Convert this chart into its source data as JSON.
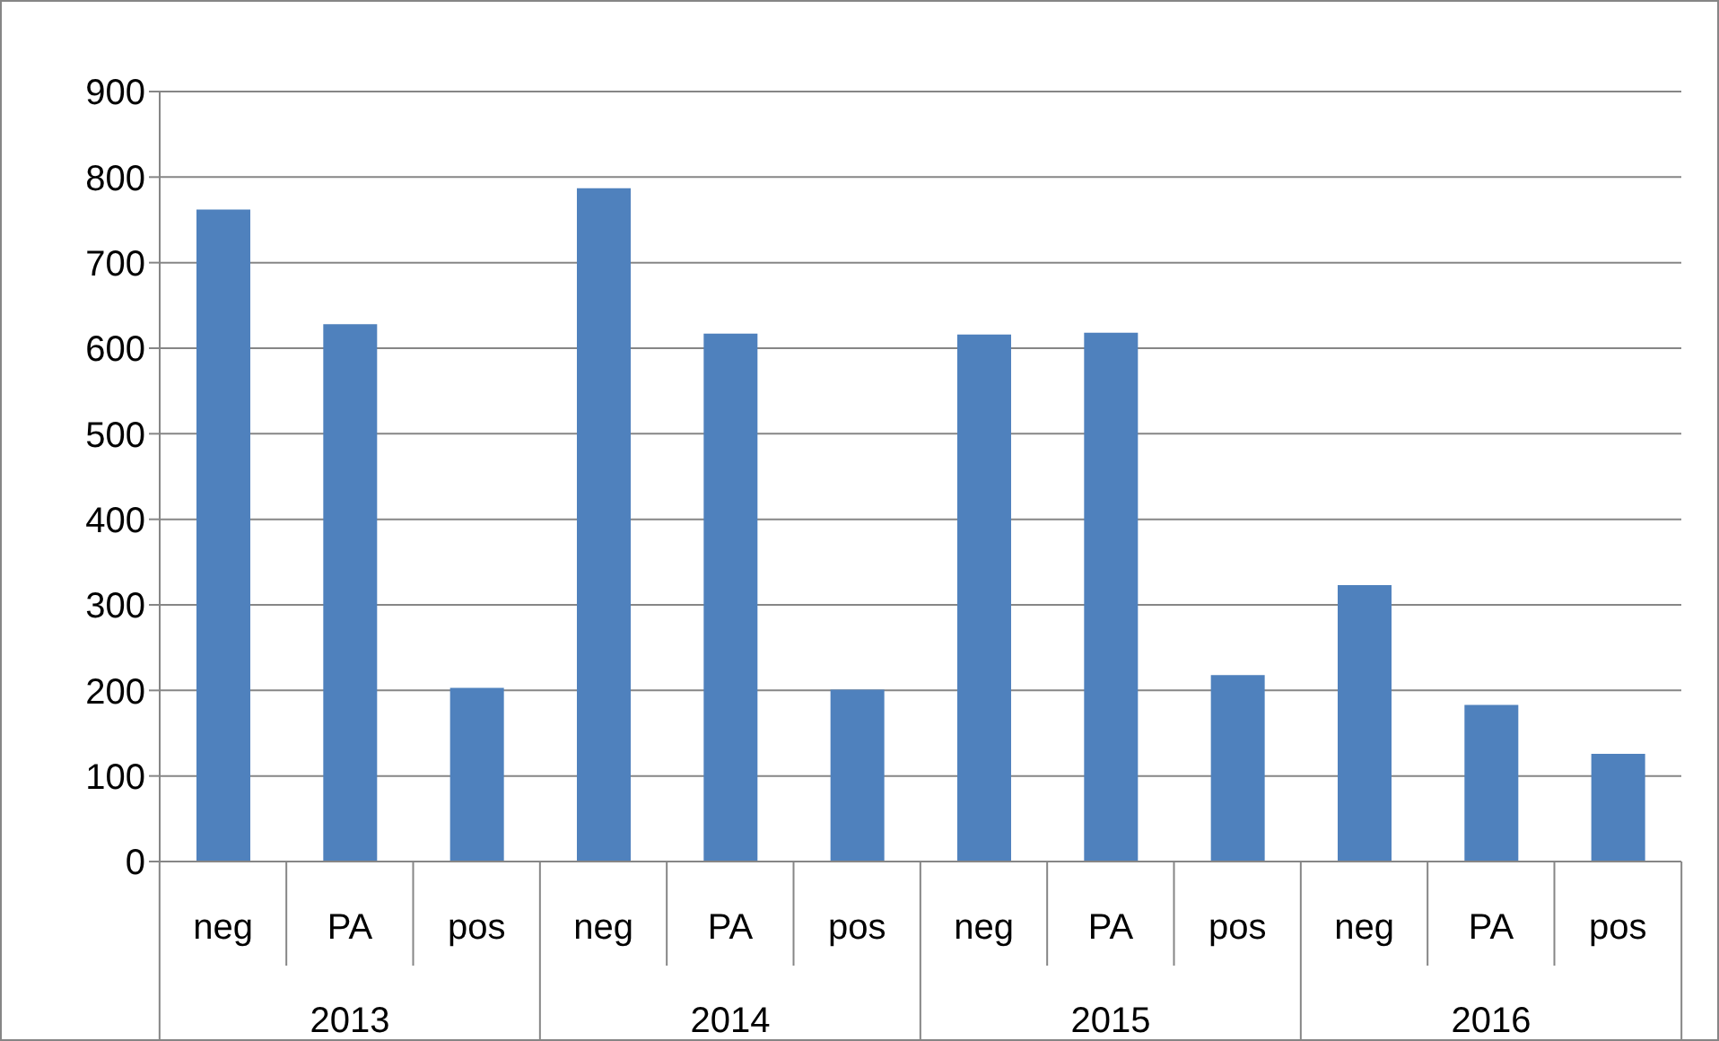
{
  "chart_data": {
    "type": "bar",
    "categories": [
      "neg",
      "PA",
      "pos",
      "neg",
      "PA",
      "pos",
      "neg",
      "PA",
      "pos",
      "neg",
      "PA",
      "pos"
    ],
    "values": [
      762,
      628,
      203,
      787,
      617,
      201,
      616,
      618,
      218,
      323,
      183,
      126
    ],
    "color": "#4f81bd",
    "ylim": [
      0,
      900
    ],
    "yticks": [
      0,
      100,
      200,
      300,
      400,
      500,
      600,
      700,
      800,
      900
    ],
    "grid": "y",
    "annotations": [
      "2013",
      "2014",
      "2015",
      "2016"
    ]
  }
}
